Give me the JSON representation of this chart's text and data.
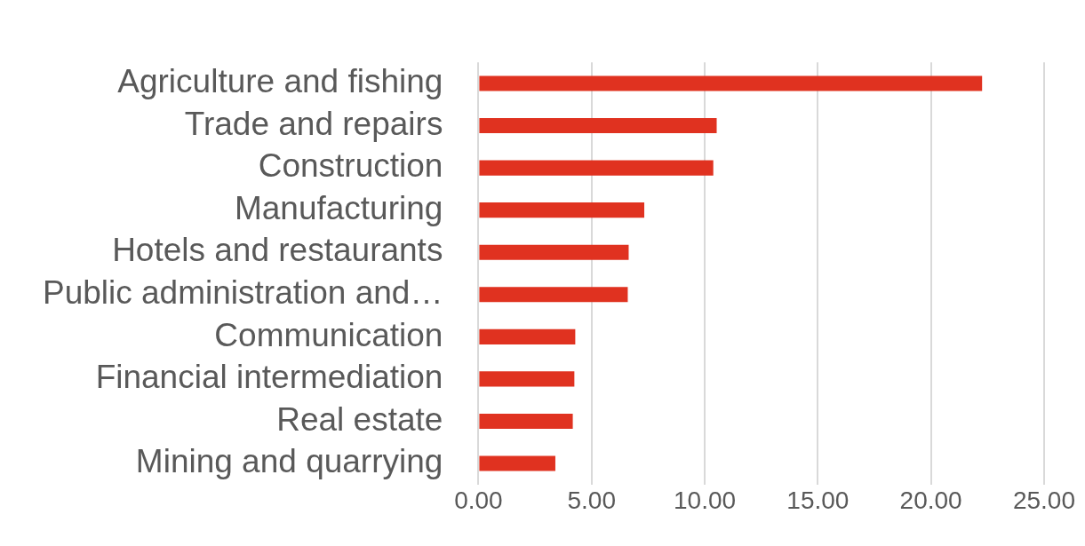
{
  "chart_data": {
    "type": "bar",
    "orientation": "horizontal",
    "categories": [
      "Agriculture and fishing",
      "Trade and repairs",
      "Construction",
      "Manufacturing",
      "Hotels and restaurants",
      "Public administration and…",
      "Communication",
      "Financial intermediation",
      "Real estate",
      "Mining and quarrying"
    ],
    "values": [
      22.26,
      10.53,
      10.38,
      7.33,
      6.64,
      6.6,
      4.28,
      4.24,
      4.17,
      3.4
    ],
    "color": "#e03220",
    "xlim": [
      0,
      25
    ],
    "xticks": [
      {
        "value": 0,
        "label": "0.00"
      },
      {
        "value": 5,
        "label": "5.00"
      },
      {
        "value": 10,
        "label": "10.00"
      },
      {
        "value": 15,
        "label": "15.00"
      },
      {
        "value": 20,
        "label": "20.00"
      },
      {
        "value": 25,
        "label": "25.00"
      }
    ],
    "grid": "x",
    "legend": false
  }
}
